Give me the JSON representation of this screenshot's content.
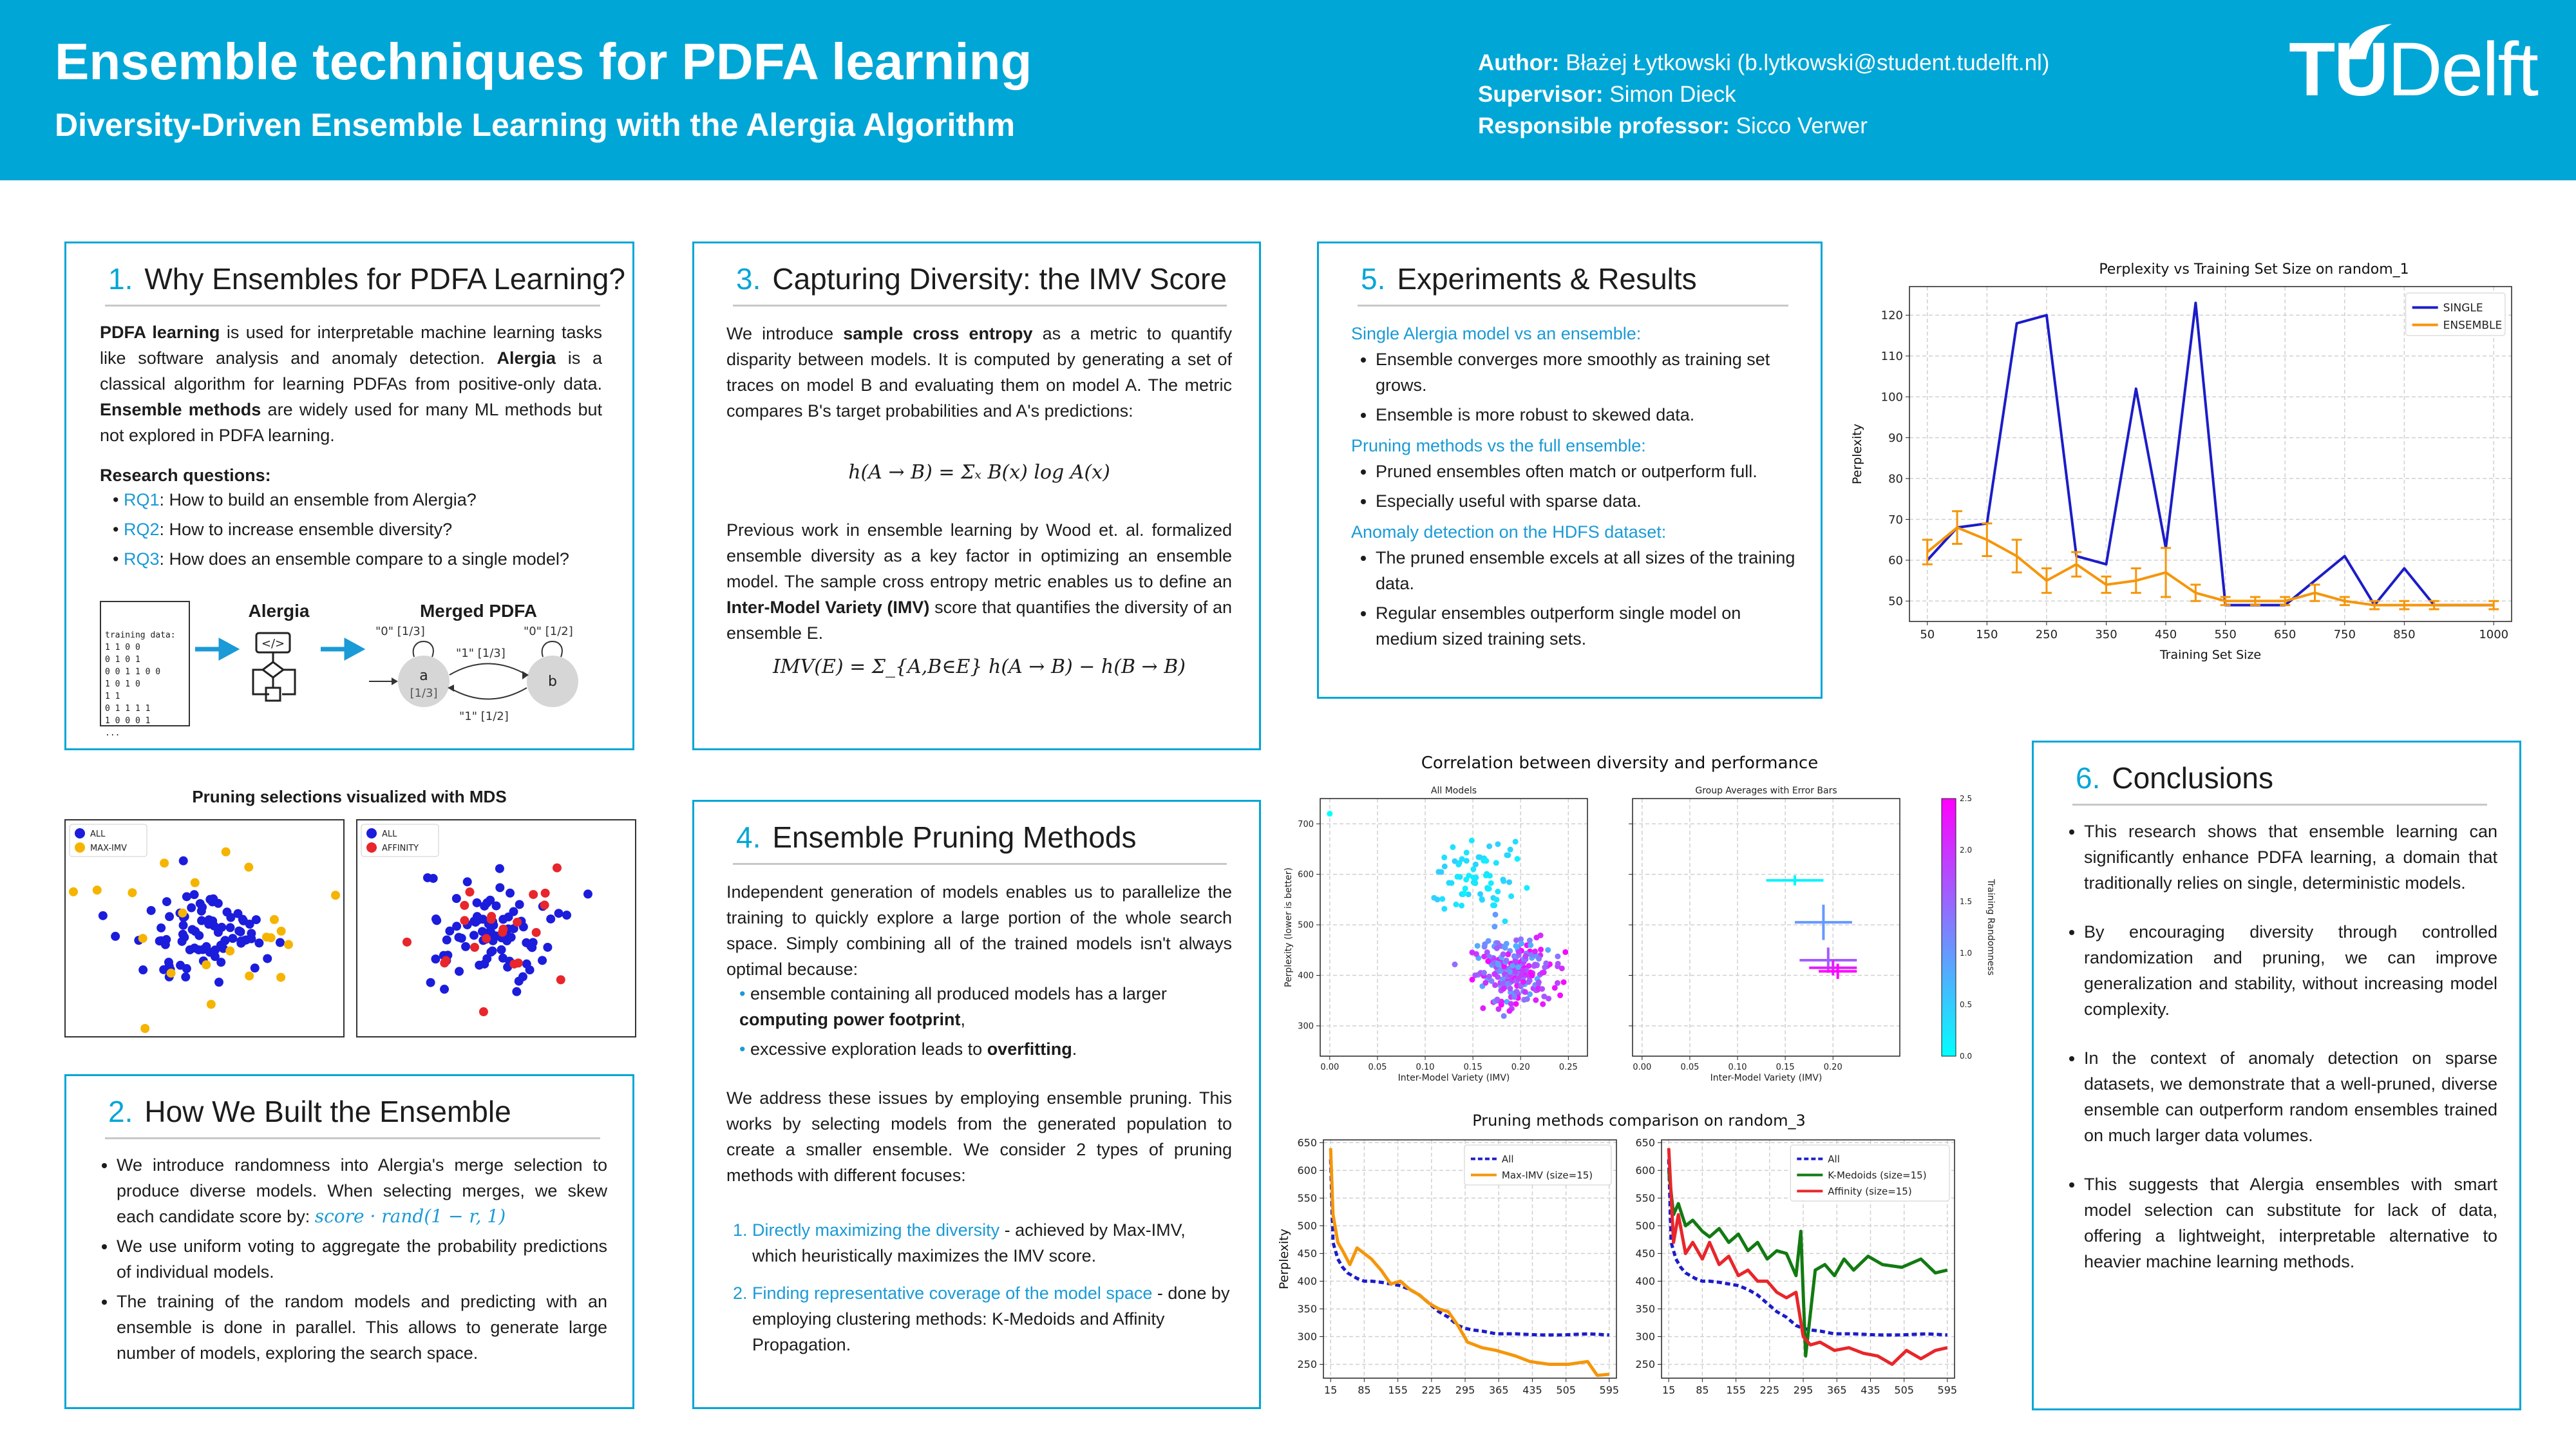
{
  "header": {
    "title": "Ensemble techniques for PDFA learning",
    "subtitle": "Diversity-Driven Ensemble Learning with the Alergia Algorithm",
    "author_label": "Author:",
    "author": "Błażej Łytkowski (b.lytkowski@student.tudelft.nl)",
    "supervisor_label": "Supervisor:",
    "supervisor": "Simon Dieck",
    "professor_label": "Responsible professor:",
    "professor": "Sicco Verwer",
    "logo_tu": "TU",
    "logo_delft": "Delft",
    "accent": "#00a6d6"
  },
  "s1": {
    "num": "1.",
    "title": "Why Ensembles for PDFA Learning?",
    "p1_b1": "PDFA learning",
    "p1_t1": " is used for interpretable machine learning tasks like software analysis and anomaly detection. ",
    "p1_b2": "Alergia",
    "p1_t2": " is a classical algorithm for learning PDFAs from positive-only data. ",
    "p1_b3": "Ensemble methods",
    "p1_t3": " are widely used for many ML methods but not explored in PDFA learning.",
    "rq_heading": "Research questions:",
    "rq": [
      {
        "id": "RQ1",
        "text": ": How to build an ensemble from Alergia?"
      },
      {
        "id": "RQ2",
        "text": ": How to increase ensemble diversity?"
      },
      {
        "id": "RQ3",
        "text": ": How does an ensemble compare to a single model?"
      }
    ],
    "training_data": [
      "training data:",
      "1 1 0 0",
      "0 1 0 1",
      "0 0 1 1 0 0",
      "1 0 1 0",
      "1 1",
      "0 1 1 1 1",
      "1 0 0 0 1",
      "..."
    ],
    "alergia_label": "Alergia",
    "merged_label": "Merged PDFA",
    "state_a": "a",
    "state_a_prob": "[1/3]",
    "state_b": "b",
    "edge_a_self": "\"0\" [1/3]",
    "edge_b_self": "\"0\" [1/2]",
    "edge_ab": "\"1\" [1/3]",
    "edge_ba": "\"1\" [1/2]"
  },
  "mds": {
    "title": "Pruning selections visualized with MDS",
    "left_legend": [
      "ALL",
      "MAX-IMV"
    ],
    "right_legend": [
      "ALL",
      "AFFINITY"
    ],
    "colors": {
      "all": "#1c1cdc",
      "maximv": "#f5b400",
      "affinity": "#e8262b"
    }
  },
  "s2": {
    "num": "2.",
    "title": "How We Built the Ensemble",
    "b1": "We introduce randomness into Alergia's merge selection to produce diverse models. When selecting merges, we skew each candidate score by:",
    "b1_formula": "score · rand(1 − r, 1)",
    "b2": "We use uniform voting to aggregate the probability predictions of individual models.",
    "b3": "The training of the random models and predicting with an ensemble is done in parallel. This allows to generate large number of models, exploring the search space."
  },
  "s3": {
    "num": "3.",
    "title": "Capturing Diversity: the IMV Score",
    "p1_t1": "We introduce ",
    "p1_b1": "sample cross entropy",
    "p1_t2": " as a metric to quantify disparity between models. It is computed by generating a set of traces on model B and evaluating them on model A. The metric compares B's target probabilities and A's predictions:",
    "formula1": "h(A → B) = Σₓ B(x) log A(x)",
    "p2_t1": "Previous work in ensemble learning by Wood et. al. formalized ensemble diversity as a key factor in optimizing an ensemble model. The sample cross entropy metric enables us to define an ",
    "p2_b1": "Inter-Model Variety (IMV)",
    "p2_t2": " score that quantifies the diversity of an ensemble E.",
    "formula2": "IMV(E) = Σ_{A,B∈E} h(A → B) − h(B → B)"
  },
  "s4": {
    "num": "4.",
    "title": "Ensemble Pruning Methods",
    "p1": "Independent generation of models enables us to parallelize the training to quickly explore a large portion of the whole search space. Simply combining all of the trained models isn't always optimal because:",
    "bullet1_t": "ensemble containing all produced models has a larger ",
    "bullet1_b": "computing power footprint",
    "bullet1_e": ",",
    "bullet2_t": "excessive exploration leads to ",
    "bullet2_b": "overfitting",
    "bullet2_e": ".",
    "p2": "We address these issues by employing ensemble pruning. This works by selecting models from the generated population to create a smaller ensemble. We consider 2 types of pruning methods with different focuses:",
    "m1_blue": "Directly maximizing the diversity",
    "m1_rest": " - achieved by Max-IMV, which heuristically maximizes the IMV score.",
    "m2_blue": "Finding representative coverage of the model space",
    "m2_rest": " - done by employing clustering methods: K-Medoids and Affinity Propagation."
  },
  "s5": {
    "num": "5.",
    "title": "Experiments & Results",
    "h1": "Single Alergia model vs an ensemble:",
    "l1": [
      "Ensemble converges more smoothly as training set grows.",
      "Ensemble is more robust to skewed data."
    ],
    "h2": "Pruning methods vs the full ensemble:",
    "l2": [
      "Pruned ensembles often match or outperform full.",
      "Especially useful with sparse data."
    ],
    "h3": "Anomaly detection on the HDFS dataset:",
    "l3": [
      "The pruned ensemble excels at all sizes of the training data.",
      "Regular ensembles outperform single model on medium sized training sets."
    ]
  },
  "s6": {
    "num": "6.",
    "title": "Conclusions",
    "items": [
      "This research shows that ensemble learning can significantly enhance PDFA learning, a domain that traditionally relies on single, deterministic models.",
      "By encouraging diversity through controlled randomization and pruning, we can improve generalization and stability, without increasing model complexity.",
      "In the context of anomaly detection on sparse datasets, we demonstrate that a well-pruned, diverse ensemble can outperform random ensembles trained on much larger data volumes.",
      "This suggests that Alergia ensembles with smart model selection can substitute for lack of data, offering a lightweight, interpretable alternative to heavier machine learning methods."
    ]
  },
  "chart_data": [
    {
      "type": "line",
      "title": "Perplexity vs Training Set Size on random_1",
      "xlabel": "Training Set Size",
      "ylabel": "Perplexity",
      "xlim": [
        20,
        1030
      ],
      "ylim": [
        45,
        127
      ],
      "xticks": [
        50,
        150,
        250,
        350,
        450,
        550,
        650,
        750,
        850,
        1000
      ],
      "yticks": [
        50,
        60,
        70,
        80,
        90,
        100,
        110,
        120
      ],
      "legend": "top-right",
      "grid": true,
      "x": [
        50,
        100,
        150,
        200,
        250,
        300,
        350,
        400,
        450,
        500,
        550,
        600,
        650,
        700,
        750,
        800,
        850,
        900,
        1000
      ],
      "series": [
        {
          "name": "SINGLE",
          "color": "#1c1cc8",
          "values": [
            60,
            68,
            69,
            118,
            120,
            61,
            59,
            102,
            63,
            123,
            49,
            49,
            49,
            55,
            61,
            49,
            58,
            49,
            49
          ]
        },
        {
          "name": "ENSEMBLE",
          "color": "#f5960a",
          "values": [
            62,
            68,
            65,
            61,
            55,
            59,
            54,
            55,
            57,
            52,
            50,
            50,
            50,
            52,
            50,
            49,
            49,
            49,
            49
          ],
          "err": [
            3,
            4,
            4,
            4,
            3,
            3,
            2,
            3,
            6,
            2,
            1,
            1,
            1,
            2,
            1,
            1,
            1,
            1,
            1
          ]
        }
      ]
    },
    {
      "type": "scatter",
      "title": "Correlation between diversity and performance",
      "panels": [
        {
          "subtitle": "All Models",
          "xlabel": "Inter-Model Variety (IMV)",
          "ylabel": "Perplexity (lower is better)",
          "xlim": [
            -0.01,
            0.27
          ],
          "ylim": [
            240,
            750
          ],
          "xticks": [
            0.0,
            0.05,
            0.1,
            0.15,
            0.2,
            0.25
          ],
          "yticks": [
            300,
            400,
            500,
            600,
            700
          ]
        },
        {
          "subtitle": "Group Averages with Error Bars",
          "xlabel": "Inter-Model Variety (IMV)",
          "xlim": [
            -0.01,
            0.27
          ],
          "ylim": [
            240,
            750
          ],
          "xticks": [
            0.0,
            0.05,
            0.1,
            0.15,
            0.2
          ],
          "groups": [
            {
              "x": 0.16,
              "y": 588,
              "xerr": 0.03,
              "yerr": 10,
              "r": 0.1
            },
            {
              "x": 0.19,
              "y": 505,
              "xerr": 0.03,
              "yerr": 35,
              "r": 1.0
            },
            {
              "x": 0.195,
              "y": 430,
              "xerr": 0.03,
              "yerr": 25,
              "r": 1.6
            },
            {
              "x": 0.2,
              "y": 415,
              "xerr": 0.025,
              "yerr": 15,
              "r": 2.2
            },
            {
              "x": 0.205,
              "y": 408,
              "xerr": 0.02,
              "yerr": 15,
              "r": 2.5
            }
          ]
        }
      ],
      "colorbar": {
        "label": "Training Randomness",
        "min": 0.0,
        "max": 2.5,
        "ticks": [
          0.0,
          0.5,
          1.0,
          1.5,
          2.0,
          2.5
        ]
      }
    },
    {
      "type": "line",
      "title": "Pruning methods comparison on random_3",
      "ylabel": "Perplexity",
      "xlim": [
        0,
        610
      ],
      "ylim": [
        225,
        655
      ],
      "xticks": [
        15,
        85,
        155,
        225,
        295,
        365,
        435,
        505,
        595
      ],
      "yticks": [
        250,
        300,
        350,
        400,
        450,
        500,
        550,
        600,
        650
      ],
      "panels": [
        {
          "legend": "top-right",
          "series": [
            {
              "name": "All",
              "color": "#1c1cc8",
              "dashed": true,
              "x": [
                15,
                20,
                30,
                40,
                50,
                60,
                70,
                85,
                100,
                120,
                140,
                160,
                180,
                200,
                220,
                240,
                260,
                280,
                295,
                310,
                330,
                360,
                400,
                450,
                500,
                550,
                595
              ],
              "values": [
                620,
                470,
                440,
                425,
                415,
                410,
                405,
                400,
                400,
                398,
                395,
                392,
                385,
                375,
                360,
                345,
                335,
                320,
                315,
                312,
                310,
                305,
                305,
                303,
                303,
                305,
                303
              ]
            },
            {
              "name": "Max-IMV (size=15)",
              "color": "#f5960a",
              "x": [
                15,
                20,
                30,
                40,
                55,
                70,
                85,
                100,
                120,
                140,
                160,
                180,
                200,
                220,
                240,
                260,
                280,
                300,
                330,
                360,
                400,
                430,
                470,
                510,
                550,
                570,
                595
              ],
              "values": [
                640,
                520,
                470,
                455,
                430,
                460,
                450,
                440,
                420,
                395,
                400,
                385,
                375,
                360,
                350,
                345,
                320,
                290,
                280,
                275,
                265,
                255,
                250,
                250,
                255,
                230,
                232
              ]
            }
          ]
        },
        {
          "legend": "top-right",
          "series": [
            {
              "name": "All",
              "color": "#1c1cc8",
              "dashed": true,
              "x": [
                15,
                20,
                30,
                40,
                50,
                60,
                70,
                85,
                100,
                120,
                140,
                160,
                180,
                200,
                220,
                240,
                260,
                280,
                295,
                310,
                330,
                360,
                400,
                450,
                500,
                550,
                595
              ],
              "values": [
                620,
                470,
                440,
                425,
                415,
                410,
                405,
                400,
                400,
                398,
                395,
                392,
                385,
                375,
                360,
                345,
                335,
                320,
                315,
                312,
                310,
                305,
                305,
                303,
                303,
                305,
                303
              ]
            },
            {
              "name": "K-Medoids (size=15)",
              "color": "#127a12",
              "x": [
                15,
                25,
                35,
                50,
                65,
                85,
                100,
                120,
                140,
                160,
                180,
                200,
                220,
                240,
                260,
                280,
                290,
                300,
                320,
                340,
                360,
                380,
                400,
                430,
                460,
                500,
                540,
                570,
                595
              ],
              "values": [
                600,
                520,
                540,
                500,
                510,
                490,
                480,
                495,
                470,
                485,
                455,
                470,
                440,
                455,
                450,
                410,
                490,
                265,
                420,
                430,
                410,
                440,
                420,
                445,
                430,
                425,
                440,
                415,
                420
              ]
            },
            {
              "name": "Affinity (size=15)",
              "color": "#e8262b",
              "x": [
                15,
                25,
                35,
                50,
                65,
                85,
                100,
                120,
                140,
                160,
                180,
                200,
                220,
                240,
                260,
                280,
                295,
                310,
                330,
                360,
                390,
                420,
                450,
                480,
                510,
                540,
                570,
                595
              ],
              "values": [
                640,
                470,
                520,
                450,
                470,
                440,
                470,
                430,
                445,
                410,
                420,
                400,
                400,
                380,
                370,
                380,
                300,
                285,
                290,
                275,
                280,
                270,
                265,
                250,
                275,
                260,
                275,
                280
              ]
            }
          ]
        }
      ]
    }
  ]
}
